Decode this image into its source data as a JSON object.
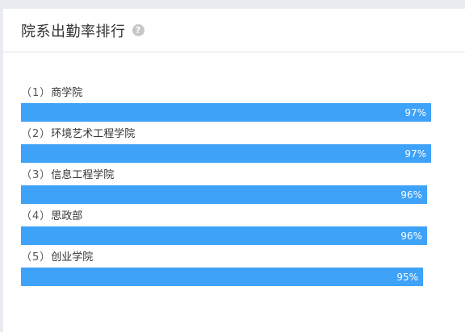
{
  "panel": {
    "title": "院系出勤率排行",
    "help_icon": "question-circle-icon"
  },
  "ranking": [
    {
      "index": "（1）",
      "name": "商学院",
      "value_label": "97%",
      "value": 97
    },
    {
      "index": "（2）",
      "name": "环境艺术工程学院",
      "value_label": "97%",
      "value": 97
    },
    {
      "index": "（3）",
      "name": "信息工程学院",
      "value_label": "96%",
      "value": 96
    },
    {
      "index": "（4）",
      "name": "思政部",
      "value_label": "96%",
      "value": 96
    },
    {
      "index": "（5）",
      "name": "创业学院",
      "value_label": "95%",
      "value": 95
    }
  ],
  "colors": {
    "bar": "#3da2f8",
    "background": "#e8ecf1"
  }
}
